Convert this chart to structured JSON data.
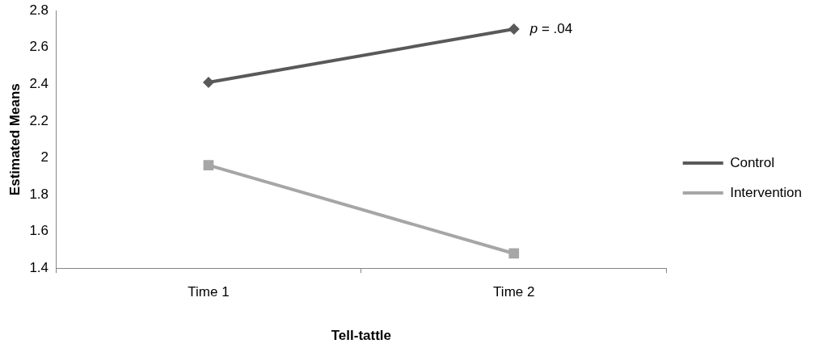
{
  "chart_data": {
    "type": "line",
    "xlabel": "Tell-tattle",
    "ylabel": "Estimated Means",
    "categories": [
      "Time 1",
      "Time 2"
    ],
    "series": [
      {
        "name": "Control",
        "color": "#595959",
        "values": [
          2.41,
          2.7
        ],
        "marker": "diamond"
      },
      {
        "name": "Intervention",
        "color": "#a6a6a6",
        "values": [
          1.96,
          1.48
        ],
        "marker": "square"
      }
    ],
    "ylim": [
      1.4,
      2.8
    ],
    "yticks": [
      1.4,
      1.6,
      1.8,
      2,
      2.2,
      2.4,
      2.6,
      2.8
    ],
    "grid": false,
    "legend": "right",
    "line_style": "solid",
    "annotations": [
      {
        "text": "p = .04",
        "x": "Time 2",
        "y": 2.7
      }
    ]
  }
}
